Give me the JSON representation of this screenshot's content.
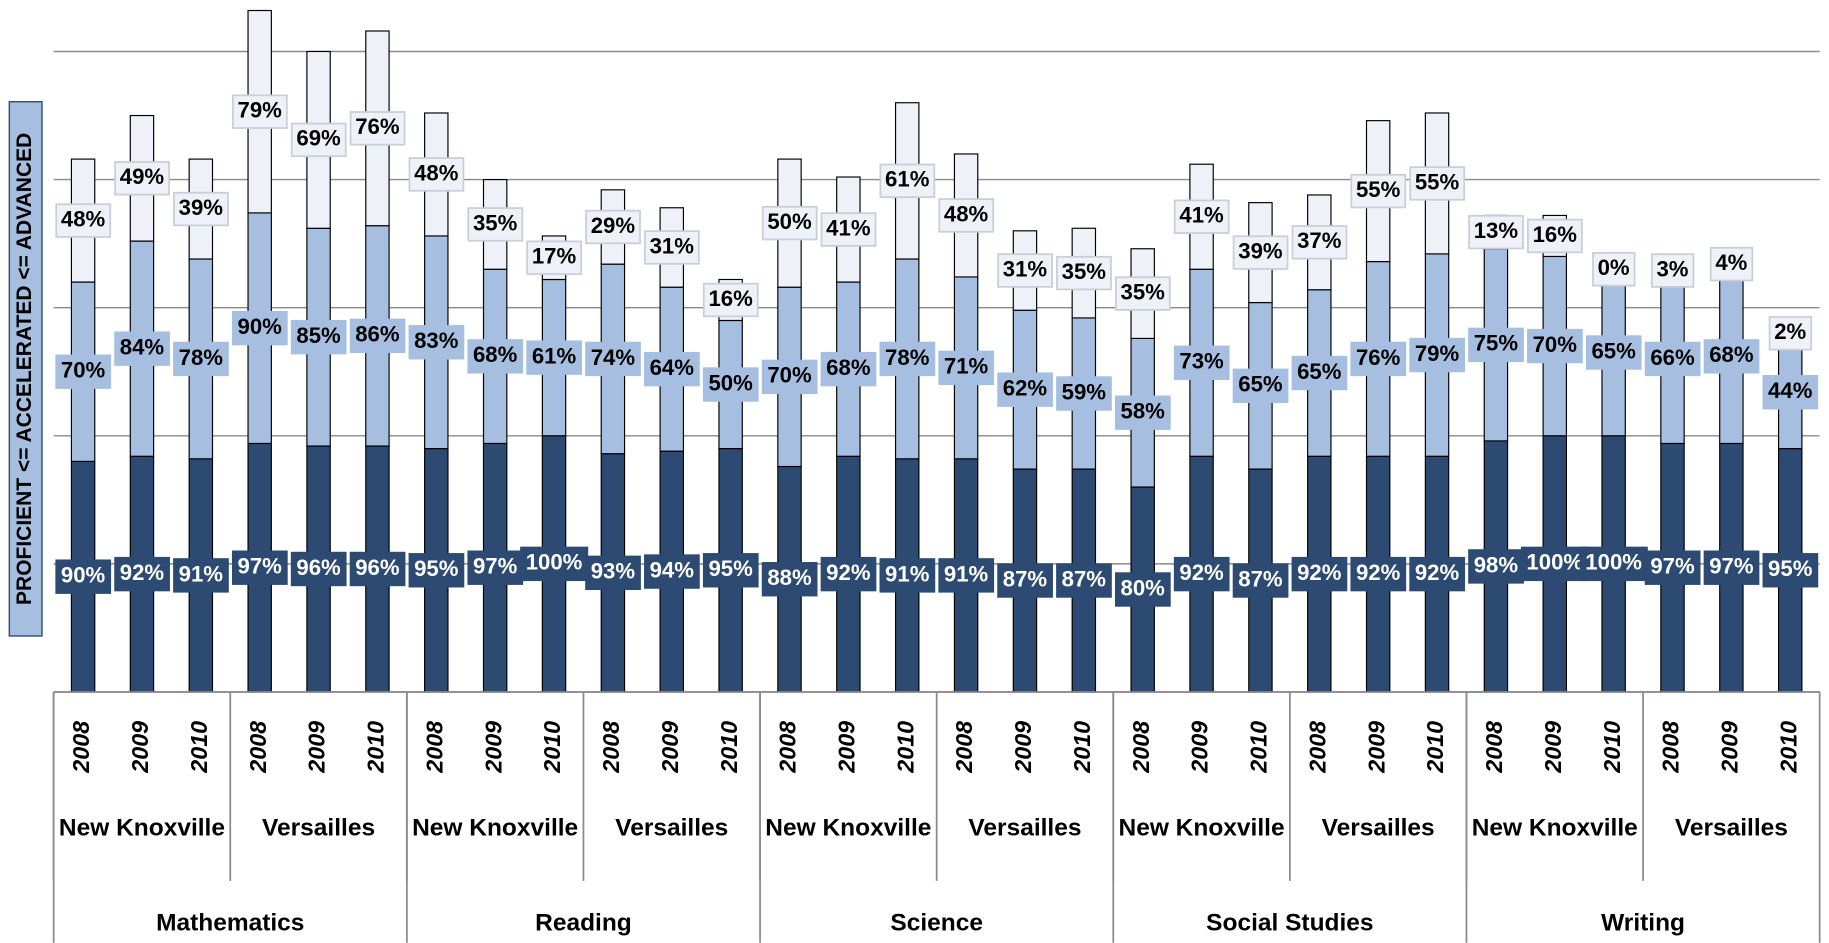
{
  "chart_data": {
    "type": "stacked_bar",
    "ylabel": "PROFICIENT <= ACCELERATED <= ADVANCED",
    "categories": [
      "2008",
      "2009",
      "2010",
      "2008",
      "2009",
      "2010",
      "2008",
      "2009",
      "2010",
      "2008",
      "2009",
      "2010",
      "2008",
      "2009",
      "2010",
      "2008",
      "2009",
      "2010",
      "2008",
      "2009",
      "2010",
      "2008",
      "2009",
      "2010",
      "2008",
      "2009",
      "2010",
      "2008",
      "2009",
      "2010"
    ],
    "schools": [
      "New Knoxville",
      "Versailles",
      "New Knoxville",
      "Versailles",
      "New Knoxville",
      "Versailles",
      "New Knoxville",
      "Versailles",
      "New Knoxville",
      "Versailles"
    ],
    "subjects": [
      "Mathematics",
      "Reading",
      "Science",
      "Social Studies",
      "Writing"
    ],
    "series": [
      {
        "color": "#2d4b72",
        "values": [
          90,
          92,
          91,
          97,
          96,
          96,
          95,
          97,
          100,
          93,
          94,
          95,
          88,
          92,
          91,
          91,
          87,
          87,
          80,
          92,
          87,
          92,
          92,
          92,
          98,
          100,
          100,
          97,
          97,
          95
        ],
        "value_labels": [
          "90%",
          "92%",
          "91%",
          "97%",
          "96%",
          "96%",
          "95%",
          "97%",
          "100%",
          "93%",
          "94%",
          "95%",
          "88%",
          "92%",
          "91%",
          "91%",
          "87%",
          "87%",
          "80%",
          "92%",
          "87%",
          "92%",
          "92%",
          "92%",
          "98%",
          "100%",
          "100%",
          "97%",
          "97%",
          "95%"
        ]
      },
      {
        "color": "#a6bfe1",
        "values": [
          70,
          84,
          78,
          90,
          85,
          86,
          83,
          68,
          61,
          74,
          64,
          50,
          70,
          68,
          78,
          71,
          62,
          59,
          58,
          73,
          65,
          65,
          76,
          79,
          75,
          70,
          65,
          66,
          68,
          44
        ],
        "value_labels": [
          "70%",
          "84%",
          "78%",
          "90%",
          "85%",
          "86%",
          "83%",
          "68%",
          "61%",
          "74%",
          "64%",
          "50%",
          "70%",
          "68%",
          "78%",
          "71%",
          "62%",
          "59%",
          "58%",
          "73%",
          "65%",
          "65%",
          "76%",
          "79%",
          "75%",
          "70%",
          "65%",
          "66%",
          "68%",
          "44%"
        ]
      },
      {
        "color": "#eef2f8",
        "values": [
          48,
          49,
          39,
          79,
          69,
          76,
          48,
          35,
          17,
          29,
          31,
          16,
          50,
          41,
          61,
          48,
          31,
          35,
          35,
          41,
          39,
          37,
          55,
          55,
          13,
          16,
          0,
          3,
          4,
          2
        ],
        "value_labels": [
          "48%",
          "49%",
          "39%",
          "79%",
          "69%",
          "76%",
          "48%",
          "35%",
          "17%",
          "29%",
          "31%",
          "16%",
          "50%",
          "41%",
          "61%",
          "48%",
          "31%",
          "35%",
          "35%",
          "41%",
          "39%",
          "37%",
          "55%",
          "55%",
          "13%",
          "16%",
          "0%",
          "3%",
          "4%",
          "2%"
        ]
      }
    ],
    "ylim": [
      0,
      270
    ],
    "yticks": [
      0,
      50,
      100,
      150,
      200,
      250
    ],
    "grid": true
  }
}
